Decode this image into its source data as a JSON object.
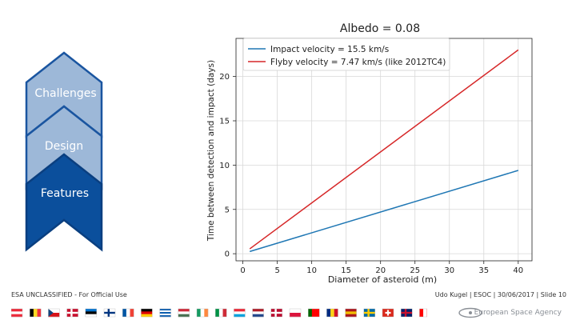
{
  "sidebar": {
    "items": [
      {
        "label": "Challenges",
        "fill": "#9db8d8",
        "stroke": "#1a55a0",
        "active": false
      },
      {
        "label": "Design",
        "fill": "#9db8d8",
        "stroke": "#1a55a0",
        "active": false
      },
      {
        "label": "Features",
        "fill": "#0b4f9c",
        "stroke": "#0a3f80",
        "active": true
      }
    ]
  },
  "chart_data": {
    "type": "line",
    "title": "Albedo = 0.08",
    "xlabel": "Diameter of asteroid (m)",
    "ylabel": "Time between detection and impact (days)",
    "xlim": [
      -1,
      42
    ],
    "ylim": [
      -0.8,
      24.3
    ],
    "xticks": [
      0,
      5,
      10,
      15,
      20,
      25,
      30,
      35,
      40
    ],
    "yticks": [
      0,
      5,
      10,
      15,
      20
    ],
    "grid": true,
    "legend_position": "top-left",
    "series": [
      {
        "name": "Impact velocity = 15.5 km/s",
        "color": "#1f77b4",
        "x": [
          1,
          40
        ],
        "y": [
          0.25,
          9.4
        ]
      },
      {
        "name": "Flyby velocity = 7.47 km/s (like 2012TC4)",
        "color": "#d62728",
        "x": [
          1,
          40
        ],
        "y": [
          0.55,
          23.0
        ]
      }
    ]
  },
  "footer": {
    "classification": "ESA UNCLASSIFIED - For Official Use",
    "author_line": "Udo Kugel | ESOC | 30/06/2017 | Slide 10",
    "brand": "European Space Agency"
  },
  "flags": [
    {
      "name": "austria",
      "colors": [
        "#ed2939",
        "#ffffff",
        "#ed2939"
      ],
      "dir": "h"
    },
    {
      "name": "belgium",
      "colors": [
        "#000000",
        "#fdda24",
        "#ef3340"
      ],
      "dir": "v"
    },
    {
      "name": "czech",
      "colors": [
        "#ffffff",
        "#d7141a"
      ],
      "dir": "h",
      "tri": "#11457e"
    },
    {
      "name": "denmark",
      "colors": [
        "#c8102e"
      ],
      "dir": "cross",
      "cross": "#ffffff"
    },
    {
      "name": "estonia",
      "colors": [
        "#0072ce",
        "#000000",
        "#ffffff"
      ],
      "dir": "h"
    },
    {
      "name": "finland",
      "colors": [
        "#ffffff"
      ],
      "dir": "cross",
      "cross": "#003580"
    },
    {
      "name": "france",
      "colors": [
        "#0055a4",
        "#ffffff",
        "#ef4135"
      ],
      "dir": "v"
    },
    {
      "name": "germany",
      "colors": [
        "#000000",
        "#dd0000",
        "#ffce00"
      ],
      "dir": "h"
    },
    {
      "name": "greece",
      "colors": [
        "#0d5eaf",
        "#ffffff",
        "#0d5eaf",
        "#ffffff",
        "#0d5eaf"
      ],
      "dir": "h"
    },
    {
      "name": "hungary",
      "colors": [
        "#ce2939",
        "#ffffff",
        "#477050"
      ],
      "dir": "h"
    },
    {
      "name": "ireland",
      "colors": [
        "#169b62",
        "#ffffff",
        "#ff883e"
      ],
      "dir": "v"
    },
    {
      "name": "italy",
      "colors": [
        "#009246",
        "#ffffff",
        "#ce2b37"
      ],
      "dir": "v"
    },
    {
      "name": "luxembourg",
      "colors": [
        "#ed2939",
        "#ffffff",
        "#00a1de"
      ],
      "dir": "h"
    },
    {
      "name": "netherlands",
      "colors": [
        "#ae1c28",
        "#ffffff",
        "#21468b"
      ],
      "dir": "h"
    },
    {
      "name": "norway",
      "colors": [
        "#ba0c2f"
      ],
      "dir": "cross",
      "cross": "#ffffff"
    },
    {
      "name": "poland",
      "colors": [
        "#ffffff",
        "#dc143c"
      ],
      "dir": "h"
    },
    {
      "name": "portugal",
      "colors": [
        "#006600",
        "#ff0000",
        "#ff0000"
      ],
      "dir": "v"
    },
    {
      "name": "romania",
      "colors": [
        "#002b7f",
        "#fcd116",
        "#ce1126"
      ],
      "dir": "v"
    },
    {
      "name": "spain",
      "colors": [
        "#aa151b",
        "#f1bf00",
        "#aa151b"
      ],
      "dir": "h"
    },
    {
      "name": "sweden",
      "colors": [
        "#006aa7"
      ],
      "dir": "cross",
      "cross": "#fecc00"
    },
    {
      "name": "switzerland",
      "colors": [
        "#da291c"
      ],
      "dir": "plus",
      "cross": "#ffffff"
    },
    {
      "name": "united-kingdom",
      "colors": [
        "#012169"
      ],
      "dir": "cross",
      "cross": "#c8102e"
    },
    {
      "name": "canada",
      "colors": [
        "#ff0000",
        "#ffffff",
        "#ff0000"
      ],
      "dir": "v"
    }
  ]
}
